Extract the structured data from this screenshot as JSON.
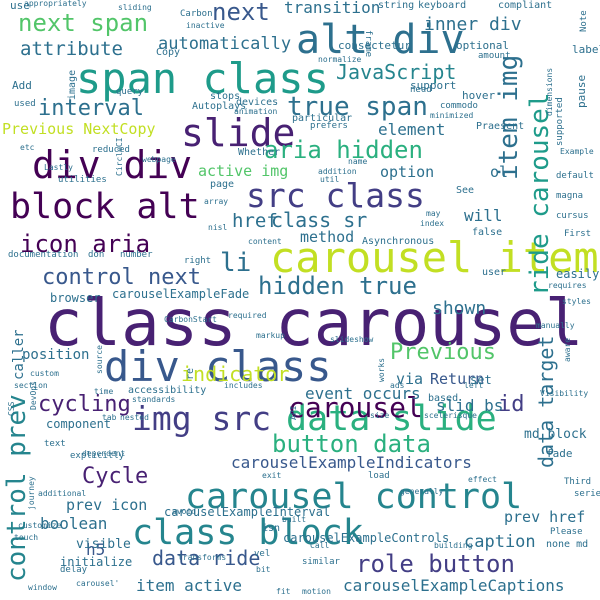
{
  "palette": {
    "c1": "#440154",
    "c2": "#482173",
    "c3": "#433e85",
    "c4": "#38588c",
    "c5": "#2d708e",
    "c6": "#25858e",
    "c7": "#1e9b8a",
    "c8": "#2ab07f",
    "c9": "#52c569",
    "c10": "#86d549",
    "c11": "#c2df23",
    "c12": "#fde725"
  },
  "words": [
    {
      "text": "class carousel",
      "color": "#482173"
    },
    {
      "text": "carousel item",
      "color": "#c2df23"
    },
    {
      "text": "span class",
      "color": "#1e9b8a"
    },
    {
      "text": "div class",
      "color": "#38588c"
    },
    {
      "text": "alt div",
      "color": "#2d708e"
    },
    {
      "text": "carousel control",
      "color": "#25858e"
    },
    {
      "text": "div div",
      "color": "#440154"
    },
    {
      "text": "slide",
      "color": "#482173"
    },
    {
      "text": "img src",
      "color": "#433e85"
    },
    {
      "text": "data slide",
      "color": "#2ab07f"
    },
    {
      "text": "class block",
      "color": "#25858e"
    },
    {
      "text": "src class",
      "color": "#433e85"
    },
    {
      "text": "block alt",
      "color": "#440154"
    },
    {
      "text": "carousel",
      "color": "#440154"
    },
    {
      "text": "next span",
      "color": "#52c569"
    },
    {
      "text": "item img",
      "color": "#2d708e"
    },
    {
      "text": "ride carousel",
      "color": "#1e9b8a"
    },
    {
      "text": "true span",
      "color": "#2d708e"
    },
    {
      "text": "control prev",
      "color": "#25858e"
    },
    {
      "text": "data target",
      "color": "#2d708e"
    },
    {
      "text": "icon aria",
      "color": "#440154"
    },
    {
      "text": "hidden true",
      "color": "#2d708e"
    },
    {
      "text": "aria hidden",
      "color": "#2ab07f"
    },
    {
      "text": "control next",
      "color": "#38588c"
    },
    {
      "text": "role button",
      "color": "#433e85"
    },
    {
      "text": "button data",
      "color": "#2ab07f"
    },
    {
      "text": "Previous",
      "color": "#52c569"
    },
    {
      "text": "Cycle",
      "color": "#482173"
    },
    {
      "text": "interval",
      "color": "#2d708e"
    },
    {
      "text": "attribute",
      "color": "#2d708e"
    },
    {
      "text": "next",
      "color": "#38588c"
    },
    {
      "text": "cycling",
      "color": "#482173"
    },
    {
      "text": "indicator",
      "color": "#c2df23"
    },
    {
      "text": "class sr",
      "color": "#2d708e"
    },
    {
      "text": "li",
      "color": "#2d708e"
    },
    {
      "text": "JavaScript",
      "color": "#25858e"
    },
    {
      "text": "data ride",
      "color": "#38588c"
    },
    {
      "text": "carouselExampleIndicators",
      "color": "#38588c"
    },
    {
      "text": "carouselExampleCaptions",
      "color": "#2d708e"
    },
    {
      "text": "id",
      "color": "#433e85"
    },
    {
      "text": "automatically",
      "color": "#2d708e"
    },
    {
      "text": "href",
      "color": "#2d708e"
    },
    {
      "text": "active img",
      "color": "#52c569"
    },
    {
      "text": "Previous NextCopy",
      "color": "#c2df23"
    },
    {
      "text": "transition",
      "color": "#2d708e"
    },
    {
      "text": "inner div",
      "color": "#2d708e"
    },
    {
      "text": "event occurs",
      "color": "#2d708e"
    },
    {
      "text": "slid bs",
      "color": "#2d708e"
    },
    {
      "text": "caption",
      "color": "#2d708e"
    },
    {
      "text": "shown",
      "color": "#2d708e"
    },
    {
      "text": "Return",
      "color": "#38588c"
    },
    {
      "text": "option",
      "color": "#2d708e"
    },
    {
      "text": "element",
      "color": "#2d708e"
    },
    {
      "text": "will",
      "color": "#2d708e"
    },
    {
      "text": "method",
      "color": "#2d708e"
    },
    {
      "text": "boolean",
      "color": "#2d708e"
    },
    {
      "text": "prev icon",
      "color": "#2d708e"
    },
    {
      "text": "item active",
      "color": "#2d708e"
    },
    {
      "text": "prev href",
      "color": "#2d708e"
    },
    {
      "text": "md block",
      "color": "#2d708e"
    },
    {
      "text": "h5",
      "color": "#38588c"
    },
    {
      "text": "position",
      "color": "#2d708e"
    },
    {
      "text": "caller",
      "color": "#2d708e"
    },
    {
      "text": "via",
      "color": "#2d708e"
    },
    {
      "text": "visible",
      "color": "#2d708e"
    },
    {
      "text": "carouselExampleInterval",
      "color": "#2d708e"
    },
    {
      "text": "carouselExampleControls",
      "color": "#2d708e"
    },
    {
      "text": "carouselExampleFade",
      "color": "#2d708e"
    },
    {
      "text": "initialize",
      "color": "#2d708e"
    },
    {
      "text": "browser",
      "color": "#2d708e"
    },
    {
      "text": "fade",
      "color": "#2d708e"
    },
    {
      "text": "consectetur",
      "color": "#2d708e"
    },
    {
      "text": "optional",
      "color": "#2d708e"
    },
    {
      "text": "support",
      "color": "#2d708e"
    },
    {
      "text": "hover",
      "color": "#2d708e"
    },
    {
      "text": "label",
      "color": "#2d708e"
    },
    {
      "text": "pause",
      "color": "#2d708e"
    },
    {
      "text": "Add",
      "color": "#2d708e"
    },
    {
      "text": "image",
      "color": "#2d708e"
    },
    {
      "text": "Copy",
      "color": "#2d708e"
    },
    {
      "text": "use",
      "color": "#2d708e"
    },
    {
      "text": "Carbon",
      "color": "#2d708e"
    },
    {
      "text": "keyboard",
      "color": "#2d708e"
    },
    {
      "text": "compliant",
      "color": "#2d708e"
    },
    {
      "text": "string",
      "color": "#2d708e"
    },
    {
      "text": "frame",
      "color": "#2d708e"
    },
    {
      "text": "Note",
      "color": "#2d708e"
    },
    {
      "text": "appropriately",
      "color": "#2d708e"
    },
    {
      "text": "sliding",
      "color": "#2d708e"
    },
    {
      "text": "inactive",
      "color": "#2d708e"
    },
    {
      "text": "amount",
      "color": "#2d708e"
    },
    {
      "text": "normalize",
      "color": "#2d708e"
    },
    {
      "text": "query",
      "color": "#2d708e"
    },
    {
      "text": "Autoplays",
      "color": "#2d708e"
    },
    {
      "text": "stops",
      "color": "#2d708e"
    },
    {
      "text": "devices",
      "color": "#2d708e"
    },
    {
      "text": "commodo",
      "color": "#2d708e"
    },
    {
      "text": "minimized",
      "color": "#2d708e"
    },
    {
      "text": "Praesent",
      "color": "#2d708e"
    },
    {
      "text": "supported",
      "color": "#2d708e"
    },
    {
      "text": "dimensions",
      "color": "#2d708e"
    },
    {
      "text": "need",
      "color": "#2d708e"
    },
    {
      "text": "used",
      "color": "#2d708e"
    },
    {
      "text": "animation",
      "color": "#2d708e"
    },
    {
      "text": "particular",
      "color": "#2d708e"
    },
    {
      "text": "prefers",
      "color": "#2d708e"
    },
    {
      "text": "Whether",
      "color": "#2d708e"
    },
    {
      "text": "reduced",
      "color": "#2d708e"
    },
    {
      "text": "CircleCI",
      "color": "#2d708e"
    },
    {
      "text": "utilities",
      "color": "#2d708e"
    },
    {
      "text": "Lastly",
      "color": "#2d708e"
    },
    {
      "text": "webpage",
      "color": "#2d708e"
    },
    {
      "text": "name",
      "color": "#2d708e"
    },
    {
      "text": "addition",
      "color": "#2d708e"
    },
    {
      "text": "util",
      "color": "#2d708e"
    },
    {
      "text": "ol",
      "color": "#2d708e"
    },
    {
      "text": "default",
      "color": "#2d708e"
    },
    {
      "text": "magna",
      "color": "#2d708e"
    },
    {
      "text": "cursus",
      "color": "#2d708e"
    },
    {
      "text": "First",
      "color": "#2d708e"
    },
    {
      "text": "Example",
      "color": "#2d708e"
    },
    {
      "text": "etc",
      "color": "#2d708e"
    },
    {
      "text": "array",
      "color": "#2d708e"
    },
    {
      "text": "page",
      "color": "#2d708e"
    },
    {
      "text": "See",
      "color": "#2d708e"
    },
    {
      "text": "may",
      "color": "#2d708e"
    },
    {
      "text": "index",
      "color": "#2d708e"
    },
    {
      "text": "false",
      "color": "#2d708e"
    },
    {
      "text": "nisl",
      "color": "#2d708e"
    },
    {
      "text": "Asynchronous",
      "color": "#2d708e"
    },
    {
      "text": "documentation",
      "color": "#2d708e"
    },
    {
      "text": "don",
      "color": "#2d708e"
    },
    {
      "text": "number",
      "color": "#2d708e"
    },
    {
      "text": "right",
      "color": "#2d708e"
    },
    {
      "text": "content",
      "color": "#2d708e"
    },
    {
      "text": "user",
      "color": "#2d708e"
    },
    {
      "text": "easily",
      "color": "#2d708e"
    },
    {
      "text": "requires",
      "color": "#2d708e"
    },
    {
      "text": "styles",
      "color": "#2d708e"
    },
    {
      "text": "manually",
      "color": "#2d708e"
    },
    {
      "text": "required",
      "color": "#2d708e"
    },
    {
      "text": "CarbonStart",
      "color": "#2d708e"
    },
    {
      "text": "markup",
      "color": "#2d708e"
    },
    {
      "text": "slideshow",
      "color": "#2d708e"
    },
    {
      "text": "aware",
      "color": "#2d708e"
    },
    {
      "text": "custom",
      "color": "#2d708e"
    },
    {
      "text": "source",
      "color": "#2d708e"
    },
    {
      "text": "re",
      "color": "#2d708e"
    },
    {
      "text": "set",
      "color": "#2d708e"
    },
    {
      "text": "section",
      "color": "#2d708e"
    },
    {
      "text": "includes",
      "color": "#2d708e"
    },
    {
      "text": "works",
      "color": "#2d708e"
    },
    {
      "text": "ads",
      "color": "#2d708e"
    },
    {
      "text": "left",
      "color": "#2d708e"
    },
    {
      "text": "Visibility",
      "color": "#2d708e"
    },
    {
      "text": "DevOps",
      "color": "#2d708e"
    },
    {
      "text": "accessibility",
      "color": "#2d708e"
    },
    {
      "text": "standards",
      "color": "#2d708e"
    },
    {
      "text": "time",
      "color": "#2d708e"
    },
    {
      "text": "tab",
      "color": "#2d708e"
    },
    {
      "text": "nested",
      "color": "#2d708e"
    },
    {
      "text": "CSS",
      "color": "#2d708e"
    },
    {
      "text": "API",
      "color": "#2d708e"
    },
    {
      "text": "based",
      "color": "#2d708e"
    },
    {
      "text": "scelerisque",
      "color": "#2d708e"
    },
    {
      "text": "component",
      "color": "#2d708e"
    },
    {
      "text": "dependent",
      "color": "#2d708e"
    },
    {
      "text": "size",
      "color": "#2d708e"
    },
    {
      "text": "text",
      "color": "#2d708e"
    },
    {
      "text": "explicitly",
      "color": "#2d708e"
    },
    {
      "text": "exit",
      "color": "#2d708e"
    },
    {
      "text": "load",
      "color": "#2d708e"
    },
    {
      "text": "effect",
      "color": "#2d708e"
    },
    {
      "text": "generally",
      "color": "#2d708e"
    },
    {
      "text": "Third",
      "color": "#2d708e"
    },
    {
      "text": "journey",
      "color": "#2d708e"
    },
    {
      "text": "additional",
      "color": "#2d708e"
    },
    {
      "text": "avoid",
      "color": "#2d708e"
    },
    {
      "text": "built",
      "color": "#2d708e"
    },
    {
      "text": "series",
      "color": "#2d708e"
    },
    {
      "text": "touch",
      "color": "#2d708e"
    },
    {
      "text": "isn",
      "color": "#2d708e"
    },
    {
      "text": "Please",
      "color": "#2d708e"
    },
    {
      "text": "delay",
      "color": "#2d708e"
    },
    {
      "text": "transforms",
      "color": "#2d708e"
    },
    {
      "text": "Call",
      "color": "#2d708e"
    },
    {
      "text": "building",
      "color": "#2d708e"
    },
    {
      "text": "none md",
      "color": "#2d708e"
    },
    {
      "text": "vel",
      "color": "#2d708e"
    },
    {
      "text": "similar",
      "color": "#2d708e"
    },
    {
      "text": "bit",
      "color": "#2d708e"
    },
    {
      "text": "carousel'",
      "color": "#2d708e"
    },
    {
      "text": "window",
      "color": "#2d708e"
    },
    {
      "text": "fit",
      "color": "#2d708e"
    },
    {
      "text": "motion",
      "color": "#2d708e"
    },
    {
      "text": "customize",
      "color": "#2d708e"
    }
  ]
}
